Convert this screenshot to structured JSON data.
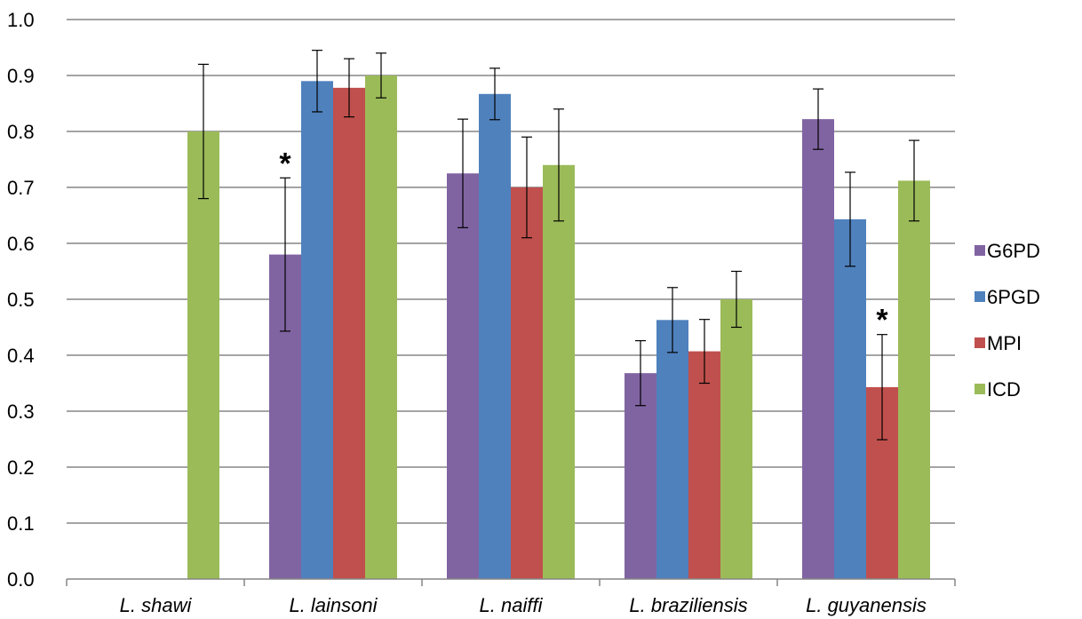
{
  "chart_data": {
    "type": "bar",
    "categories": [
      "L. shawi",
      "L. lainsoni",
      "L. naiffi",
      "L. braziliensis",
      "L. guyanensis"
    ],
    "series": [
      {
        "name": "G6PD",
        "color": "#8064A2",
        "values": [
          0,
          0.58,
          0.725,
          0.368,
          0.822
        ],
        "errors": [
          0,
          0.137,
          0.097,
          0.058,
          0.054
        ]
      },
      {
        "name": "6PGD",
        "color": "#4F81BD",
        "values": [
          0,
          0.89,
          0.867,
          0.463,
          0.643
        ],
        "errors": [
          0,
          0.055,
          0.046,
          0.058,
          0.084
        ]
      },
      {
        "name": "MPI",
        "color": "#C0504D",
        "values": [
          0,
          0.878,
          0.7,
          0.407,
          0.343
        ],
        "errors": [
          0,
          0.052,
          0.09,
          0.057,
          0.094
        ]
      },
      {
        "name": "ICD",
        "color": "#9BBB59",
        "values": [
          0.8,
          0.9,
          0.74,
          0.5,
          0.712
        ],
        "errors": [
          0.12,
          0.04,
          0.1,
          0.05,
          0.072
        ]
      }
    ],
    "ylim": [
      0,
      1.0
    ],
    "yticks": [
      "0.0",
      "0.1",
      "0.2",
      "0.3",
      "0.4",
      "0.5",
      "0.6",
      "0.7",
      "0.8",
      "0.9",
      "1.0"
    ],
    "grid": true,
    "legend_position": "right",
    "annotations": [
      {
        "text": "*",
        "category": "L. lainsoni",
        "series": "G6PD"
      },
      {
        "text": "*",
        "category": "L. guyanensis",
        "series": "MPI"
      }
    ]
  }
}
